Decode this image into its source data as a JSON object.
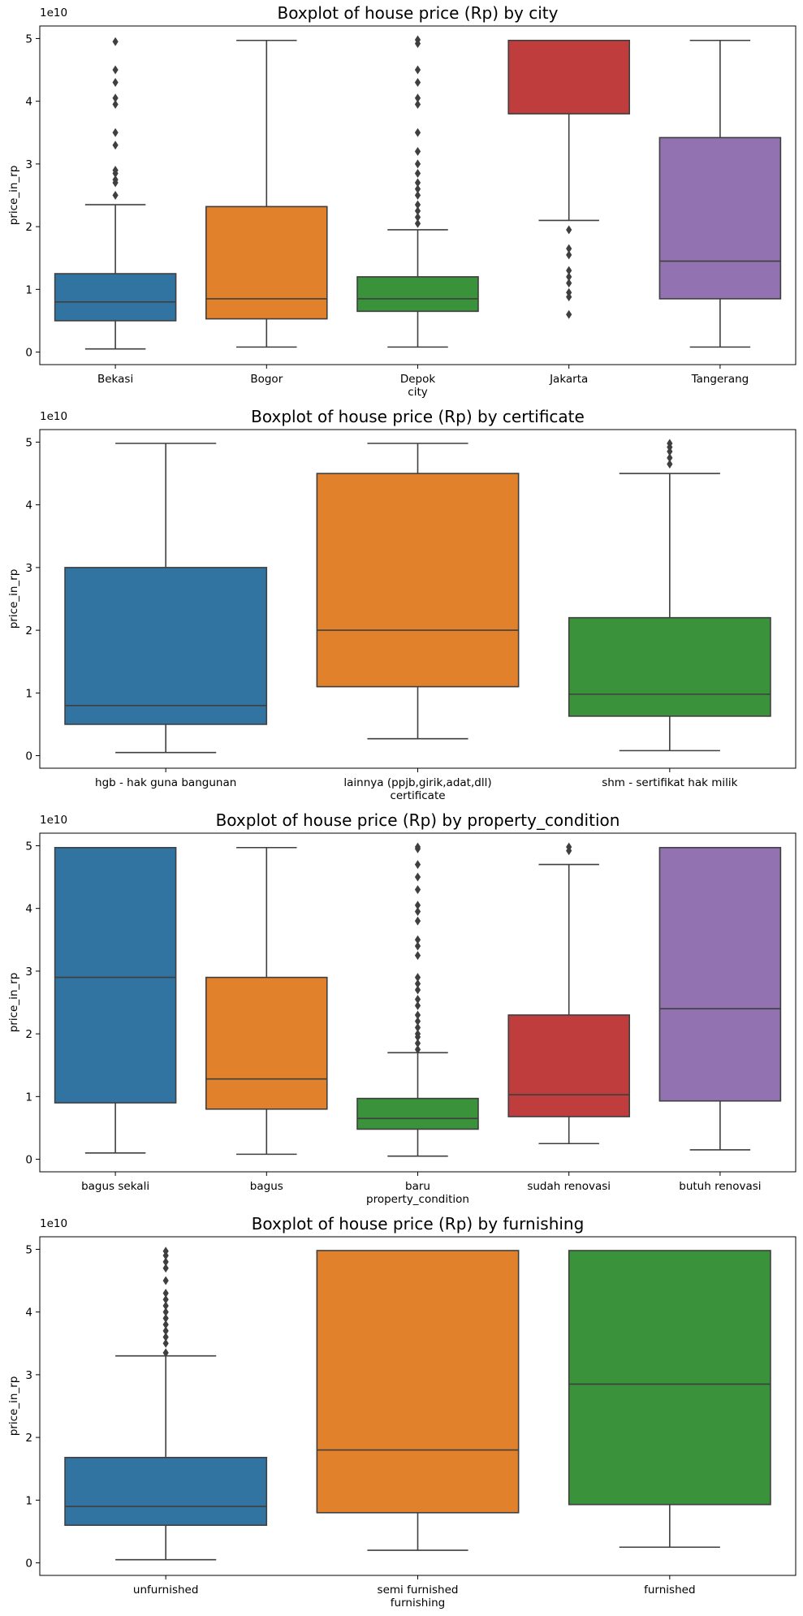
{
  "chart_data": [
    {
      "type": "box",
      "title": "Boxplot of house price (Rp) by city",
      "xlabel": "city",
      "ylabel": "price_in_rp",
      "y_offset_label": "1e10",
      "y_unit_scale": 10000000000,
      "ylim": [
        -0.2,
        5.2
      ],
      "yticks": [
        0,
        1,
        2,
        3,
        4,
        5
      ],
      "categories": [
        "Bekasi",
        "Bogor",
        "Depok",
        "Jakarta",
        "Tangerang"
      ],
      "colors": [
        "#3274a1",
        "#e1812c",
        "#3a923a",
        "#c03d3e",
        "#9372b2"
      ],
      "boxes": [
        {
          "whisker_low": 0.05,
          "q1": 0.5,
          "median": 0.8,
          "q3": 1.25,
          "whisker_high": 2.35,
          "outliers": [
            2.5,
            2.7,
            2.75,
            2.85,
            2.9,
            3.3,
            3.5,
            3.95,
            4.05,
            4.3,
            4.5,
            4.95
          ]
        },
        {
          "whisker_low": 0.08,
          "q1": 0.53,
          "median": 0.85,
          "q3": 2.32,
          "whisker_high": 4.97,
          "outliers": []
        },
        {
          "whisker_low": 0.08,
          "q1": 0.65,
          "median": 0.85,
          "q3": 1.2,
          "whisker_high": 1.95,
          "outliers": [
            2.05,
            2.15,
            2.25,
            2.35,
            2.5,
            2.6,
            2.7,
            2.85,
            3.0,
            3.2,
            3.5,
            3.95,
            4.05,
            4.3,
            4.5,
            4.92,
            4.98
          ]
        },
        {
          "whisker_low": null,
          "q1": 3.8,
          "median": 4.97,
          "q3": 4.97,
          "whisker_high": 4.97,
          "low_whisker_tip": 2.1,
          "outliers": [
            1.95,
            1.65,
            1.55,
            1.3,
            1.2,
            1.1,
            0.95,
            0.88,
            0.6
          ]
        },
        {
          "whisker_low": 0.08,
          "q1": 0.85,
          "median": 1.45,
          "q3": 3.42,
          "whisker_high": 4.97,
          "outliers": []
        }
      ]
    },
    {
      "type": "box",
      "title": "Boxplot of house price (Rp) by certificate",
      "xlabel": "certificate",
      "ylabel": "price_in_rp",
      "y_offset_label": "1e10",
      "y_unit_scale": 10000000000,
      "ylim": [
        -0.2,
        5.2
      ],
      "yticks": [
        0,
        1,
        2,
        3,
        4,
        5
      ],
      "categories": [
        "hgb - hak guna bangunan",
        "lainnya (ppjb,girik,adat,dll)",
        "shm - sertifikat hak milik"
      ],
      "colors": [
        "#3274a1",
        "#e1812c",
        "#3a923a"
      ],
      "boxes": [
        {
          "whisker_low": 0.05,
          "q1": 0.5,
          "median": 0.8,
          "q3": 3.0,
          "whisker_high": 4.98,
          "outliers": []
        },
        {
          "whisker_low": 0.27,
          "q1": 1.1,
          "median": 2.0,
          "q3": 4.5,
          "whisker_high": 4.98,
          "outliers": []
        },
        {
          "whisker_low": 0.08,
          "q1": 0.63,
          "median": 0.98,
          "q3": 2.2,
          "whisker_high": 4.5,
          "outliers": [
            4.65,
            4.75,
            4.85,
            4.92,
            4.98
          ]
        }
      ]
    },
    {
      "type": "box",
      "title": "Boxplot of house price (Rp) by property_condition",
      "xlabel": "property_condition",
      "ylabel": "price_in_rp",
      "y_offset_label": "1e10",
      "y_unit_scale": 10000000000,
      "ylim": [
        -0.2,
        5.2
      ],
      "yticks": [
        0,
        1,
        2,
        3,
        4,
        5
      ],
      "categories": [
        "bagus sekali",
        "bagus",
        "baru",
        "sudah renovasi",
        "butuh renovasi"
      ],
      "colors": [
        "#3274a1",
        "#e1812c",
        "#3a923a",
        "#c03d3e",
        "#9372b2"
      ],
      "boxes": [
        {
          "whisker_low": 0.1,
          "q1": 0.9,
          "median": 2.9,
          "q3": 4.97,
          "whisker_high": 4.97,
          "outliers": []
        },
        {
          "whisker_low": 0.08,
          "q1": 0.8,
          "median": 1.28,
          "q3": 2.9,
          "whisker_high": 4.97,
          "outliers": []
        },
        {
          "whisker_low": 0.05,
          "q1": 0.48,
          "median": 0.65,
          "q3": 0.97,
          "whisker_high": 1.7,
          "outliers": [
            1.75,
            1.85,
            1.95,
            2.0,
            2.1,
            2.2,
            2.3,
            2.45,
            2.55,
            2.7,
            2.8,
            2.9,
            3.25,
            3.4,
            3.5,
            3.8,
            3.95,
            4.05,
            4.3,
            4.5,
            4.7,
            4.95,
            4.98
          ]
        },
        {
          "whisker_low": 0.25,
          "q1": 0.68,
          "median": 1.03,
          "q3": 2.3,
          "whisker_high": 4.7,
          "outliers": [
            4.92,
            4.98
          ]
        },
        {
          "whisker_low": 0.15,
          "q1": 0.93,
          "median": 2.4,
          "q3": 4.97,
          "whisker_high": 4.97,
          "outliers": []
        }
      ]
    },
    {
      "type": "box",
      "title": "Boxplot of house price (Rp) by furnishing",
      "xlabel": "furnishing",
      "ylabel": "price_in_rp",
      "y_offset_label": "1e10",
      "y_unit_scale": 10000000000,
      "ylim": [
        -0.2,
        5.2
      ],
      "yticks": [
        0,
        1,
        2,
        3,
        4,
        5
      ],
      "categories": [
        "unfurnished",
        "semi furnished",
        "furnished"
      ],
      "colors": [
        "#3274a1",
        "#e1812c",
        "#3a923a"
      ],
      "boxes": [
        {
          "whisker_low": 0.05,
          "q1": 0.6,
          "median": 0.9,
          "q3": 1.68,
          "whisker_high": 3.3,
          "outliers": [
            3.35,
            3.5,
            3.6,
            3.7,
            3.8,
            3.9,
            4.0,
            4.1,
            4.2,
            4.3,
            4.5,
            4.7,
            4.8,
            4.9,
            4.97
          ]
        },
        {
          "whisker_low": 0.2,
          "q1": 0.8,
          "median": 1.8,
          "q3": 4.98,
          "whisker_high": 4.98,
          "outliers": []
        },
        {
          "whisker_low": 0.25,
          "q1": 0.93,
          "median": 2.85,
          "q3": 4.98,
          "whisker_high": 4.98,
          "outliers": []
        }
      ]
    }
  ]
}
